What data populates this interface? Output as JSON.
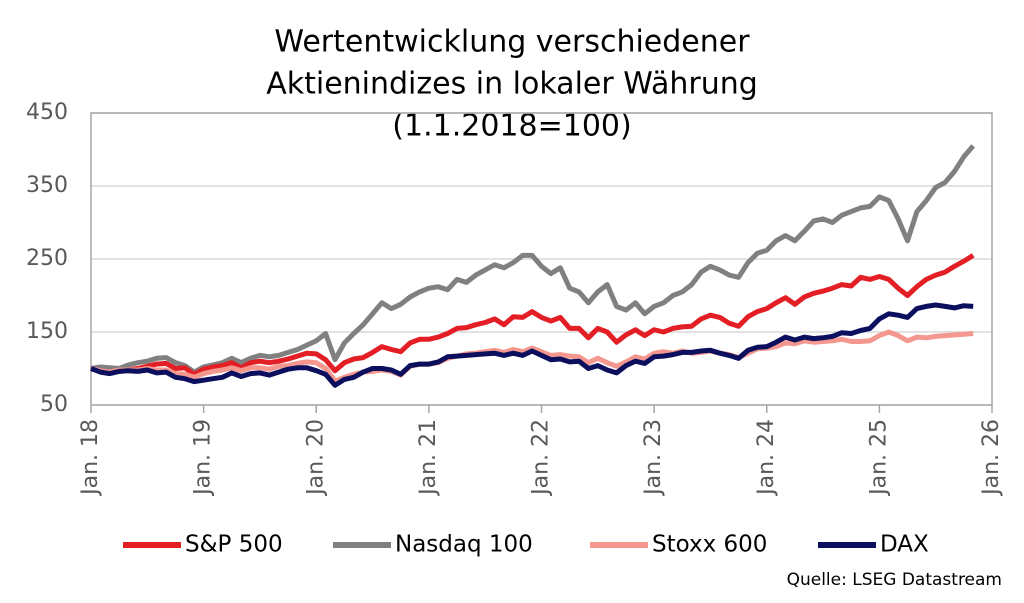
{
  "chart_data": {
    "type": "line",
    "title": [
      "Wertentwicklung verschiedener",
      "Aktienindizes in lokaler Währung",
      "(1.1.2018=100)"
    ],
    "source": "Quelle: LSEG Datastream",
    "x": [
      "2018-01",
      "2018-02",
      "2018-03",
      "2018-04",
      "2018-05",
      "2018-06",
      "2018-07",
      "2018-08",
      "2018-09",
      "2018-10",
      "2018-11",
      "2018-12",
      "2019-01",
      "2019-02",
      "2019-03",
      "2019-04",
      "2019-05",
      "2019-06",
      "2019-07",
      "2019-08",
      "2019-09",
      "2019-10",
      "2019-11",
      "2019-12",
      "2020-01",
      "2020-02",
      "2020-03",
      "2020-04",
      "2020-05",
      "2020-06",
      "2020-07",
      "2020-08",
      "2020-09",
      "2020-10",
      "2020-11",
      "2020-12",
      "2021-01",
      "2021-02",
      "2021-03",
      "2021-04",
      "2021-05",
      "2021-06",
      "2021-07",
      "2021-08",
      "2021-09",
      "2021-10",
      "2021-11",
      "2021-12",
      "2022-01",
      "2022-02",
      "2022-03",
      "2022-04",
      "2022-05",
      "2022-06",
      "2022-07",
      "2022-08",
      "2022-09",
      "2022-10",
      "2022-11",
      "2022-12",
      "2023-01",
      "2023-02",
      "2023-03",
      "2023-04",
      "2023-05",
      "2023-06",
      "2023-07",
      "2023-08",
      "2023-09",
      "2023-10",
      "2023-11",
      "2023-12",
      "2024-01",
      "2024-02",
      "2024-03",
      "2024-04",
      "2024-05",
      "2024-06",
      "2024-07",
      "2024-08",
      "2024-09",
      "2024-10",
      "2024-11",
      "2024-12",
      "2025-01",
      "2025-02",
      "2025-03",
      "2025-04",
      "2025-05",
      "2025-06",
      "2025-07",
      "2025-08",
      "2025-09",
      "2025-10",
      "2025-11"
    ],
    "xlim": [
      "2018-01",
      "2026-01"
    ],
    "xticks": [
      {
        "value": "2018-01",
        "label": "Jan. 18"
      },
      {
        "value": "2019-01",
        "label": "Jan. 19"
      },
      {
        "value": "2020-01",
        "label": "Jan. 20"
      },
      {
        "value": "2021-01",
        "label": "Jan. 21"
      },
      {
        "value": "2022-01",
        "label": "Jan. 22"
      },
      {
        "value": "2023-01",
        "label": "Jan. 23"
      },
      {
        "value": "2024-01",
        "label": "Jan. 24"
      },
      {
        "value": "2025-01",
        "label": "Jan. 25"
      },
      {
        "value": "2026-01",
        "label": "Jan. 26"
      }
    ],
    "ylim": [
      50,
      450
    ],
    "yticks": [
      50,
      150,
      250,
      350,
      450
    ],
    "grid": true,
    "legend": "bottom",
    "series": [
      {
        "name": "S&P 500",
        "color": "#e31e24",
        "values": [
          100,
          97,
          95,
          96,
          98,
          100,
          103,
          106,
          107,
          100,
          101,
          92,
          99,
          102,
          104,
          108,
          101,
          108,
          110,
          108,
          110,
          113,
          117,
          121,
          120,
          112,
          97,
          108,
          113,
          115,
          122,
          130,
          126,
          123,
          135,
          140,
          140,
          143,
          148,
          155,
          156,
          160,
          163,
          168,
          160,
          171,
          170,
          178,
          170,
          165,
          170,
          155,
          155,
          142,
          155,
          150,
          136,
          146,
          153,
          145,
          153,
          150,
          155,
          157,
          158,
          168,
          173,
          170,
          162,
          158,
          171,
          178,
          182,
          190,
          197,
          188,
          198,
          203,
          206,
          210,
          215,
          213,
          225,
          222,
          226,
          222,
          210,
          200,
          212,
          222,
          228,
          232,
          240,
          247,
          255
        ]
      },
      {
        "name": "Nasdaq 100",
        "color": "#808080",
        "values": [
          100,
          102,
          101,
          100,
          105,
          108,
          110,
          114,
          115,
          108,
          104,
          95,
          102,
          105,
          108,
          114,
          108,
          114,
          118,
          116,
          118,
          122,
          126,
          132,
          138,
          148,
          112,
          135,
          148,
          160,
          175,
          190,
          182,
          188,
          198,
          205,
          210,
          212,
          208,
          222,
          218,
          228,
          235,
          242,
          238,
          245,
          255,
          255,
          240,
          230,
          238,
          210,
          205,
          190,
          205,
          215,
          185,
          180,
          190,
          175,
          185,
          190,
          200,
          205,
          215,
          232,
          240,
          235,
          228,
          225,
          245,
          258,
          262,
          275,
          282,
          275,
          288,
          302,
          305,
          300,
          310,
          315,
          320,
          322,
          335,
          330,
          305,
          275,
          315,
          330,
          348,
          355,
          370,
          390,
          405
        ]
      },
      {
        "name": "Stoxx 600",
        "color": "#f4978e",
        "values": [
          100,
          97,
          95,
          98,
          98,
          98,
          100,
          98,
          98,
          93,
          92,
          88,
          93,
          96,
          98,
          101,
          97,
          101,
          101,
          99,
          103,
          104,
          107,
          109,
          108,
          100,
          83,
          88,
          92,
          95,
          96,
          98,
          96,
          91,
          103,
          106,
          106,
          108,
          114,
          117,
          120,
          121,
          123,
          125,
          122,
          126,
          123,
          128,
          123,
          118,
          119,
          117,
          116,
          108,
          114,
          108,
          103,
          109,
          116,
          113,
          121,
          123,
          121,
          124,
          121,
          122,
          124,
          121,
          119,
          115,
          121,
          127,
          128,
          130,
          135,
          134,
          138,
          136,
          137,
          138,
          140,
          137,
          137,
          138,
          145,
          150,
          145,
          138,
          143,
          142,
          144,
          145,
          146,
          147,
          148
        ]
      },
      {
        "name": "DAX",
        "color": "#0b0f5e",
        "values": [
          100,
          95,
          93,
          96,
          97,
          96,
          98,
          94,
          95,
          88,
          86,
          82,
          84,
          86,
          88,
          94,
          89,
          93,
          94,
          91,
          95,
          99,
          101,
          101,
          97,
          92,
          77,
          85,
          88,
          95,
          100,
          100,
          98,
          92,
          104,
          106,
          106,
          109,
          116,
          117,
          118,
          119,
          120,
          121,
          118,
          121,
          118,
          124,
          118,
          112,
          113,
          109,
          110,
          100,
          104,
          98,
          94,
          104,
          110,
          107,
          116,
          117,
          119,
          122,
          122,
          124,
          125,
          121,
          118,
          114,
          125,
          129,
          130,
          136,
          143,
          139,
          143,
          141,
          142,
          144,
          149,
          148,
          152,
          155,
          168,
          175,
          173,
          170,
          182,
          185,
          187,
          185,
          183,
          186,
          185
        ]
      }
    ]
  }
}
